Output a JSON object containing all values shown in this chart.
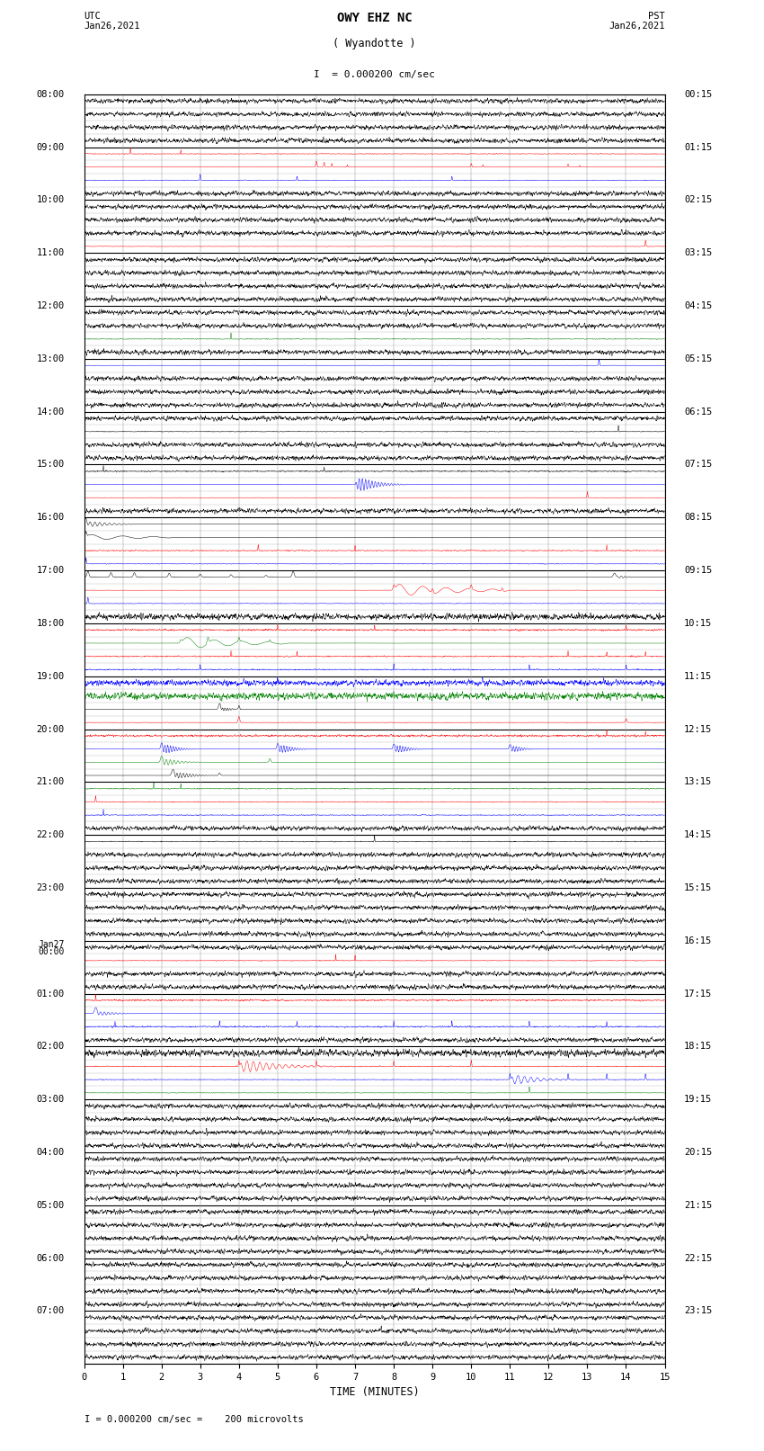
{
  "title_line1": "OWY EHZ NC",
  "title_line2": "( Wyandotte )",
  "scale_label": "I  = 0.000200 cm/sec",
  "footer_label": "I = 0.000200 cm/sec =    200 microvolts",
  "utc_label": "UTC\nJan26,2021",
  "pst_label": "PST\nJan26,2021",
  "xlabel": "TIME (MINUTES)",
  "left_times": [
    "08:00",
    "09:00",
    "10:00",
    "11:00",
    "12:00",
    "13:00",
    "14:00",
    "15:00",
    "16:00",
    "17:00",
    "18:00",
    "19:00",
    "20:00",
    "21:00",
    "22:00",
    "23:00",
    "Jan27\n00:00",
    "01:00",
    "02:00",
    "03:00",
    "04:00",
    "05:00",
    "06:00",
    "07:00"
  ],
  "right_times": [
    "00:15",
    "01:15",
    "02:15",
    "03:15",
    "04:15",
    "05:15",
    "06:15",
    "07:15",
    "08:15",
    "09:15",
    "10:15",
    "11:15",
    "12:15",
    "13:15",
    "14:15",
    "15:15",
    "16:15",
    "17:15",
    "18:15",
    "19:15",
    "20:15",
    "21:15",
    "22:15",
    "23:15"
  ],
  "num_rows": 24,
  "sub_rows": 4,
  "xlim": [
    0,
    15
  ],
  "bg_color": "#ffffff",
  "grid_color": "#000000",
  "thin_grid_color": "#aaaaaa",
  "fig_width": 8.5,
  "fig_height": 16.13,
  "dpi": 100
}
